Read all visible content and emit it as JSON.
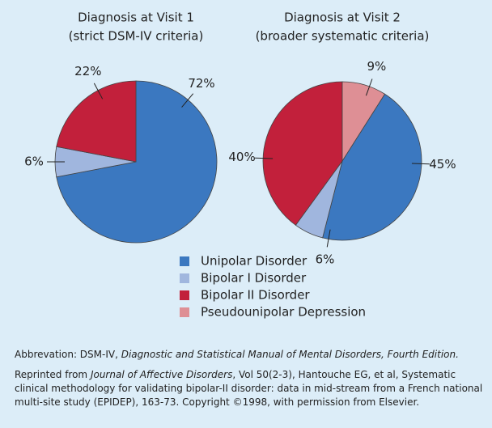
{
  "chart_data": [
    {
      "type": "pie",
      "title": "Diagnosis at Visit 1",
      "subtitle": "(strict DSM-IV criteria)",
      "categories": [
        "Unipolar Disorder",
        "Bipolar I Disorder",
        "Bipolar II Disorder"
      ],
      "values": [
        72,
        6,
        22
      ],
      "value_labels": [
        "72%",
        "6%",
        "22%"
      ],
      "start_angle": 0
    },
    {
      "type": "pie",
      "title": "Diagnosis at Visit 2",
      "subtitle": "(broader systematic criteria)",
      "categories": [
        "Unipolar Disorder",
        "Bipolar I Disorder",
        "Bipolar II Disorder",
        "Pseudounipolar Depression"
      ],
      "values": [
        45,
        6,
        40,
        9
      ],
      "value_labels": [
        "45%",
        "6%",
        "40%",
        "9%"
      ],
      "colors": [
        "#3b78c0",
        "#a0b6de",
        "#c2203b",
        "#de8f95"
      ],
      "start_angle": 32.4
    }
  ],
  "notes": [
    [
      {
        "text": "Abbrevation: DSM-IV, ",
        "italic": false
      },
      {
        "text": "Diagnostic and Statistical Manual of Mental Disorders, Fourth Edition.",
        "italic": true
      }
    ],
    [
      {
        "text": "Reprinted from ",
        "italic": false
      },
      {
        "text": "Journal of Affective Disorders",
        "italic": true
      },
      {
        "text": ", Vol 50(2-3), Hantouche EG, et al, Systematic clinical methodology for validating bipolar-II disorder: data in mid-stream from a French national multi-site study (EPIDEP), 163-73. Copyright ©1998, with permission from Elsevier.",
        "italic": false
      }
    ]
  ]
}
